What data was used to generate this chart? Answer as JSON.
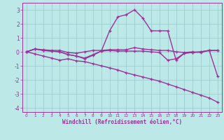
{
  "xlabel": "Windchill (Refroidissement éolien,°C)",
  "background_color": "#bde8e8",
  "grid_color": "#9ecece",
  "line_color": "#993399",
  "xlim": [
    -0.5,
    23.5
  ],
  "ylim": [
    -4.3,
    3.5
  ],
  "xticks": [
    0,
    1,
    2,
    3,
    4,
    5,
    6,
    7,
    8,
    9,
    10,
    11,
    12,
    13,
    14,
    15,
    16,
    17,
    18,
    19,
    20,
    21,
    22,
    23
  ],
  "yticks": [
    -4,
    -3,
    -2,
    -1,
    0,
    1,
    2,
    3
  ],
  "x": [
    0,
    1,
    2,
    3,
    4,
    5,
    6,
    7,
    8,
    9,
    10,
    11,
    12,
    13,
    14,
    15,
    16,
    17,
    18,
    19,
    20,
    21,
    22,
    23
  ],
  "line1": [
    0.0,
    0.2,
    0.15,
    0.1,
    0.1,
    -0.05,
    -0.1,
    0.0,
    0.1,
    0.1,
    0.15,
    0.15,
    0.15,
    0.3,
    0.2,
    0.15,
    0.1,
    0.1,
    0.0,
    -0.05,
    0.0,
    -0.05,
    0.1,
    0.1
  ],
  "line2": [
    0.0,
    0.2,
    0.1,
    0.05,
    0.0,
    -0.2,
    -0.3,
    -0.45,
    -0.2,
    0.05,
    0.1,
    0.05,
    0.05,
    0.05,
    0.05,
    0.0,
    -0.05,
    -0.6,
    -0.5,
    -0.1,
    -0.05,
    0.0,
    0.1,
    0.1
  ],
  "line3": [
    0.0,
    0.2,
    0.1,
    0.05,
    0.0,
    -0.2,
    -0.3,
    -0.5,
    -0.25,
    0.05,
    1.5,
    2.5,
    2.65,
    3.0,
    2.4,
    1.5,
    1.5,
    1.5,
    -0.6,
    -0.1,
    -0.05,
    0.0,
    0.1,
    -1.75
  ],
  "line4": [
    0.0,
    -0.15,
    -0.3,
    -0.45,
    -0.6,
    -0.5,
    -0.65,
    -0.7,
    -0.85,
    -1.0,
    -1.15,
    -1.3,
    -1.5,
    -1.65,
    -1.8,
    -1.95,
    -2.1,
    -2.3,
    -2.5,
    -2.7,
    -2.9,
    -3.1,
    -3.3,
    -3.6
  ]
}
